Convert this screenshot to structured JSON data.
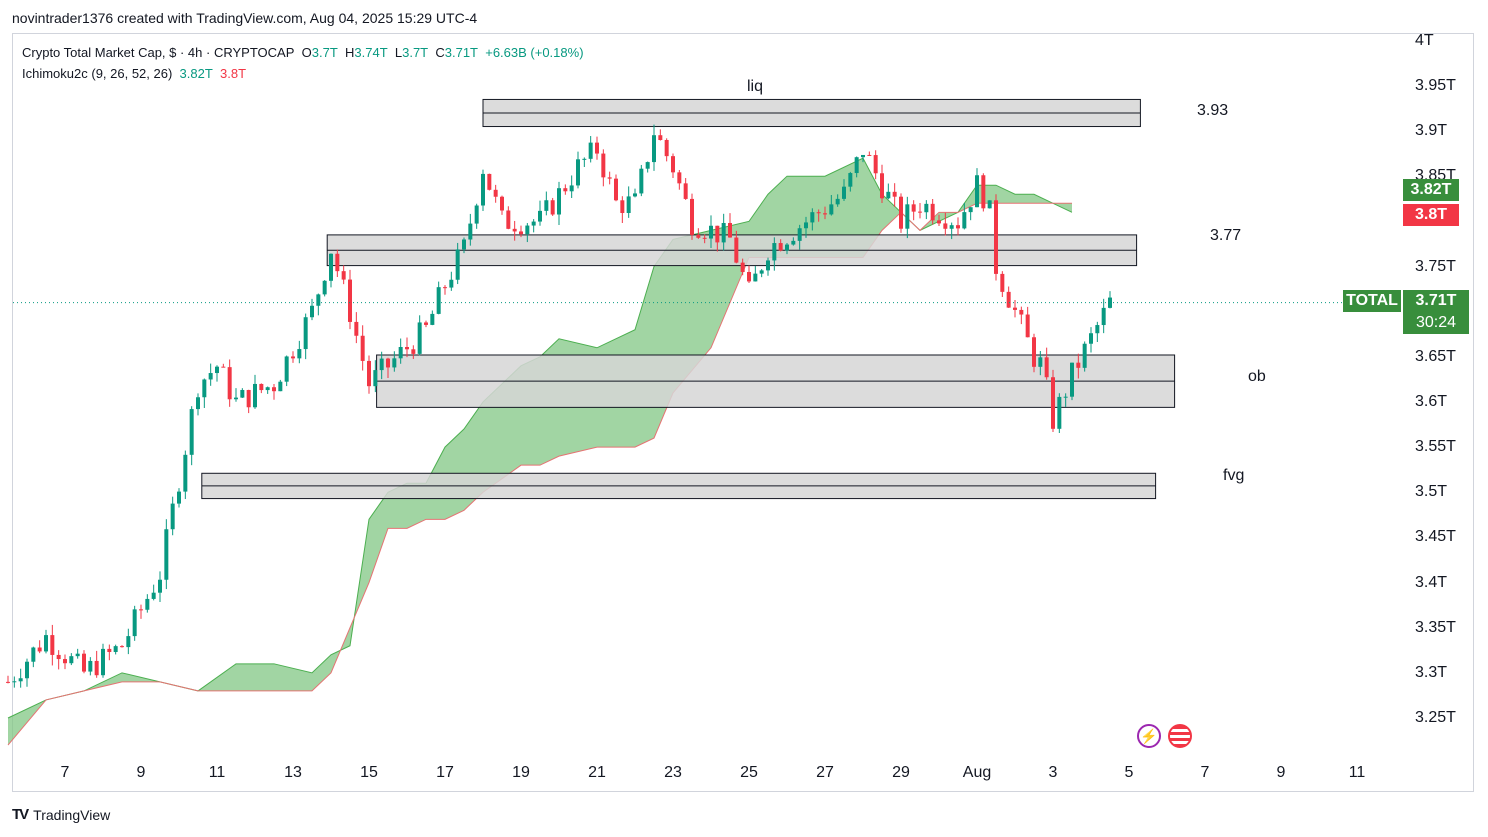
{
  "caption": "novintrader1376 created with TradingView.com, Aug 04, 2025 15:29 UTC-4",
  "legend": {
    "symbol_line": "Crypto Total Market Cap, $ · 4h · CRYPTOCAP",
    "o_label": "O",
    "o_value": "3.7T",
    "h_label": "H",
    "h_value": "3.74T",
    "l_label": "L",
    "l_value": "3.7T",
    "c_label": "C",
    "c_value": "3.71T",
    "change": "+6.63B (+0.18%)",
    "indicator": "Ichimoku2c (9, 26, 52, 26)",
    "ind_v1": "3.82T",
    "ind_v2": "3.8T"
  },
  "price_badges": {
    "symbol": "TOTAL",
    "last": "3.71T",
    "countdown": "30:24",
    "ichimoku_green": "3.82T",
    "ichimoku_red": "3.8T"
  },
  "footer_brand": "TradingView",
  "footer_mark": "TV",
  "colors": {
    "up": "#089981",
    "down": "#f23645",
    "cloud": "#81c784",
    "zone_fill": "#d6d6d6",
    "zone_border": "#131722",
    "badge_green": "#388e3c",
    "badge_red": "#f23645"
  },
  "chart_data": {
    "type": "candlestick",
    "title": "Crypto Total Market Cap",
    "timeframe": "4h",
    "y_unit": "T",
    "yticks": [
      3.25,
      3.3,
      3.35,
      3.4,
      3.45,
      3.5,
      3.55,
      3.6,
      3.65,
      3.7,
      3.75,
      3.8,
      3.85,
      3.9,
      3.95,
      4.0
    ],
    "ytick_labels": [
      "3.25T",
      "3.3T",
      "3.35T",
      "3.4T",
      "3.45T",
      "3.5T",
      "3.55T",
      "3.6T",
      "3.65T",
      "3.7T",
      "3.75T",
      "3.8T",
      "3.85T",
      "3.9T",
      "3.95T",
      "4T"
    ],
    "xtick_labels": [
      "7",
      "9",
      "11",
      "13",
      "15",
      "17",
      "19",
      "21",
      "23",
      "25",
      "27",
      "29",
      "Aug",
      "3",
      "5",
      "7",
      "9",
      "11"
    ],
    "xtick_days": [
      7,
      9,
      11,
      13,
      15,
      17,
      19,
      21,
      23,
      25,
      27,
      29,
      31,
      33,
      35,
      37,
      39,
      41
    ],
    "last_price": 3.71,
    "zones": [
      {
        "label": "liq",
        "value_label": "3.93",
        "top": 3.935,
        "bottom": 3.905,
        "start_day": 18.0,
        "end_day": 35.3
      },
      {
        "label": "",
        "value_label": "3.77",
        "top": 3.785,
        "bottom": 3.751,
        "start_day": 13.9,
        "end_day": 35.2
      },
      {
        "label": "ob",
        "value_label": "",
        "top": 3.652,
        "bottom": 3.594,
        "start_day": 15.2,
        "end_day": 36.2
      },
      {
        "label": "fvg",
        "value_label": "",
        "top": 3.521,
        "bottom": 3.493,
        "start_day": 10.6,
        "end_day": 35.7
      }
    ],
    "close_series": {
      "days": [
        5.5,
        6.5,
        7.5,
        8.5,
        9.5,
        10.5,
        11.0,
        11.5,
        12.5,
        13.5,
        14.0,
        14.5,
        15.0,
        15.5,
        16.5,
        17.0,
        17.5,
        18.0,
        18.5,
        19.5,
        20.5,
        21.0,
        21.5,
        22.0,
        22.5,
        23.0,
        23.5,
        24.5,
        25.0,
        25.5,
        26.5,
        27.5,
        28.0,
        28.5,
        29.0,
        29.5,
        30.5,
        31.0,
        31.3,
        31.5,
        32.0,
        32.5,
        32.7,
        33.0,
        33.5,
        34.0,
        34.5
      ],
      "values": [
        3.29,
        3.34,
        3.3,
        3.33,
        3.41,
        3.62,
        3.64,
        3.6,
        3.62,
        3.7,
        3.77,
        3.7,
        3.62,
        3.64,
        3.68,
        3.73,
        3.77,
        3.86,
        3.8,
        3.8,
        3.86,
        3.88,
        3.82,
        3.82,
        3.9,
        3.86,
        3.8,
        3.78,
        3.72,
        3.77,
        3.8,
        3.83,
        3.88,
        3.84,
        3.8,
        3.82,
        3.8,
        3.84,
        3.82,
        3.75,
        3.7,
        3.65,
        3.64,
        3.58,
        3.63,
        3.67,
        3.71
      ]
    },
    "ichimoku_span_a": {
      "days": [
        5.5,
        6.5,
        7.5,
        8.5,
        9.5,
        10.5,
        11.5,
        12.5,
        13.5,
        14.0,
        14.5,
        15.0,
        15.5,
        16.0,
        16.5,
        17.0,
        17.5,
        18.0,
        19.0,
        19.5,
        20.0,
        21.0,
        22.0,
        22.5,
        23.0,
        24.0,
        25.0,
        25.5,
        26.0,
        27.0,
        28.0,
        28.5,
        29.0,
        29.5,
        30.0,
        30.5,
        31.0,
        31.5,
        32.0,
        32.5,
        33.0,
        33.5
      ],
      "values": [
        3.25,
        3.27,
        3.28,
        3.3,
        3.29,
        3.28,
        3.31,
        3.31,
        3.3,
        3.32,
        3.33,
        3.47,
        3.5,
        3.51,
        3.51,
        3.55,
        3.57,
        3.6,
        3.64,
        3.65,
        3.67,
        3.66,
        3.68,
        3.75,
        3.78,
        3.79,
        3.8,
        3.83,
        3.85,
        3.85,
        3.87,
        3.83,
        3.81,
        3.79,
        3.8,
        3.81,
        3.84,
        3.84,
        3.83,
        3.83,
        3.82,
        3.81
      ]
    },
    "ichimoku_span_b": {
      "days": [
        5.5,
        6.5,
        7.5,
        8.5,
        9.5,
        10.5,
        11.5,
        12.5,
        13.5,
        14.0,
        14.5,
        15.0,
        15.5,
        16.0,
        16.5,
        17.0,
        17.5,
        18.0,
        19.0,
        19.5,
        20.0,
        21.0,
        22.0,
        22.5,
        23.0,
        24.0,
        25.0,
        25.5,
        26.0,
        27.0,
        28.0,
        28.5,
        29.0,
        29.5,
        30.0,
        30.5,
        31.0,
        31.5,
        32.0,
        32.5,
        33.0,
        33.5
      ],
      "values": [
        3.22,
        3.27,
        3.28,
        3.29,
        3.29,
        3.28,
        3.28,
        3.28,
        3.28,
        3.3,
        3.35,
        3.4,
        3.46,
        3.46,
        3.47,
        3.47,
        3.48,
        3.5,
        3.53,
        3.53,
        3.54,
        3.55,
        3.55,
        3.56,
        3.61,
        3.66,
        3.76,
        3.76,
        3.76,
        3.76,
        3.76,
        3.79,
        3.81,
        3.79,
        3.81,
        3.81,
        3.82,
        3.82,
        3.82,
        3.82,
        3.82,
        3.82
      ]
    }
  }
}
